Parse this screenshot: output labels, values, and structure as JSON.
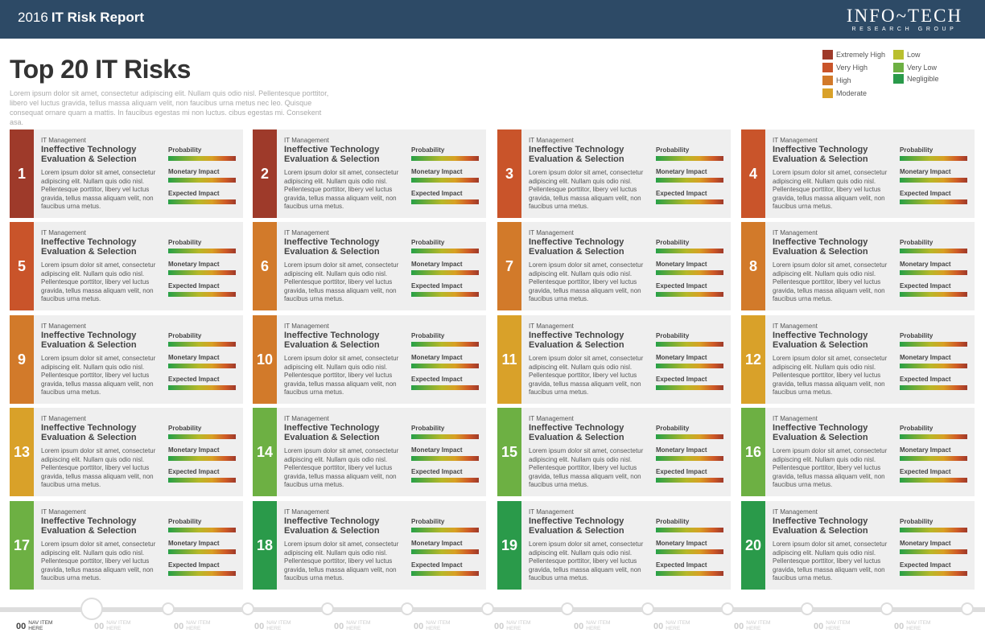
{
  "header": {
    "year": "2016",
    "title": "IT Risk Report",
    "logo_main": "INFO~TECH",
    "logo_sub": "RESEARCH GROUP"
  },
  "page": {
    "title": "Top 20 IT Risks",
    "intro": "Lorem ipsum dolor sit amet, consectetur adipiscing elit. Nullam quis odio nisl. Pellentesque porttitor, libero vel luctus gravida, tellus massa aliquam velit, non faucibus urna metus nec leo. Quisque consequat ornare quam a mattis. In faucibus egestas mi non luctus. cibus egestas mi. Consekent asa."
  },
  "legend": [
    {
      "label": "Extremely High",
      "color": "#9e3a2a"
    },
    {
      "label": "Very High",
      "color": "#c9542a"
    },
    {
      "label": "High",
      "color": "#d27a2a"
    },
    {
      "label": "Moderate",
      "color": "#d9a129"
    },
    {
      "label": "Low",
      "color": "#b9bf2e"
    },
    {
      "label": "Very Low",
      "color": "#6db043"
    },
    {
      "label": "Negligible",
      "color": "#2a9a4a"
    }
  ],
  "meter_labels": [
    "Probability",
    "Monetary Impact",
    "Expected Impact"
  ],
  "risks": [
    {
      "num": "1",
      "category": "IT Management",
      "title": "Ineffective Technology Evaluation & Selection",
      "desc": "Lorem ipsum dolor sit amet, consectetur adipiscing elit. Nullam quis odio nisl. Pellentesque porttitor, libery vel luctus gravida, tellus massa aliquam velit, non faucibus urna metus.",
      "color": "#9e3a2a"
    },
    {
      "num": "2",
      "category": "IT Management",
      "title": "Ineffective Technology Evaluation & Selection",
      "desc": "Lorem ipsum dolor sit amet, consectetur adipiscing elit. Nullam quis odio nisl. Pellentesque porttitor, libery vel luctus gravida, tellus massa aliquam velit, non faucibus urna metus.",
      "color": "#9e3a2a"
    },
    {
      "num": "3",
      "category": "IT Management",
      "title": "Ineffective Technology Evaluation & Selection",
      "desc": "Lorem ipsum dolor sit amet, consectetur adipiscing elit. Nullam quis odio nisl. Pellentesque porttitor, libery vel luctus gravida, tellus massa aliquam velit, non faucibus urna metus.",
      "color": "#c9542a"
    },
    {
      "num": "4",
      "category": "IT Management",
      "title": "Ineffective Technology Evaluation & Selection",
      "desc": "Lorem ipsum dolor sit amet, consectetur adipiscing elit. Nullam quis odio nisl. Pellentesque porttitor, libery vel luctus gravida, tellus massa aliquam velit, non faucibus urna metus.",
      "color": "#c9542a"
    },
    {
      "num": "5",
      "category": "IT Management",
      "title": "Ineffective Technology Evaluation & Selection",
      "desc": "Lorem ipsum dolor sit amet, consectetur adipiscing elit. Nullam quis odio nisl. Pellentesque porttitor, libery vel luctus gravida, tellus massa aliquam velit, non faucibus urna metus.",
      "color": "#c9542a"
    },
    {
      "num": "6",
      "category": "IT Management",
      "title": "Ineffective Technology Evaluation & Selection",
      "desc": "Lorem ipsum dolor sit amet, consectetur adipiscing elit. Nullam quis odio nisl. Pellentesque porttitor, libery vel luctus gravida, tellus massa aliquam velit, non faucibus urna metus.",
      "color": "#d27a2a"
    },
    {
      "num": "7",
      "category": "IT Management",
      "title": "Ineffective Technology Evaluation & Selection",
      "desc": "Lorem ipsum dolor sit amet, consectetur adipiscing elit. Nullam quis odio nisl. Pellentesque porttitor, libery vel luctus gravida, tellus massa aliquam velit, non faucibus urna metus.",
      "color": "#d27a2a"
    },
    {
      "num": "8",
      "category": "IT Management",
      "title": "Ineffective Technology Evaluation & Selection",
      "desc": "Lorem ipsum dolor sit amet, consectetur adipiscing elit. Nullam quis odio nisl. Pellentesque porttitor, libery vel luctus gravida, tellus massa aliquam velit, non faucibus urna metus.",
      "color": "#d27a2a"
    },
    {
      "num": "9",
      "category": "IT Management",
      "title": "Ineffective Technology Evaluation & Selection",
      "desc": "Lorem ipsum dolor sit amet, consectetur adipiscing elit. Nullam quis odio nisl. Pellentesque porttitor, libery vel luctus gravida, tellus massa aliquam velit, non faucibus urna metus.",
      "color": "#d27a2a"
    },
    {
      "num": "10",
      "category": "IT Management",
      "title": "Ineffective Technology Evaluation & Selection",
      "desc": "Lorem ipsum dolor sit amet, consectetur adipiscing elit. Nullam quis odio nisl. Pellentesque porttitor, libery vel luctus gravida, tellus massa aliquam velit, non faucibus urna metus.",
      "color": "#d27a2a"
    },
    {
      "num": "11",
      "category": "IT Management",
      "title": "Ineffective Technology Evaluation & Selection",
      "desc": "Lorem ipsum dolor sit amet, consectetur adipiscing elit. Nullam quis odio nisl. Pellentesque porttitor, libery vel luctus gravida, tellus massa aliquam velit, non faucibus urna metus.",
      "color": "#d9a129"
    },
    {
      "num": "12",
      "category": "IT Management",
      "title": "Ineffective Technology Evaluation & Selection",
      "desc": "Lorem ipsum dolor sit amet, consectetur adipiscing elit. Nullam quis odio nisl. Pellentesque porttitor, libery vel luctus gravida, tellus massa aliquam velit, non faucibus urna metus.",
      "color": "#d9a129"
    },
    {
      "num": "13",
      "category": "IT Management",
      "title": "Ineffective Technology Evaluation & Selection",
      "desc": "Lorem ipsum dolor sit amet, consectetur adipiscing elit. Nullam quis odio nisl. Pellentesque porttitor, libery vel luctus gravida, tellus massa aliquam velit, non faucibus urna metus.",
      "color": "#d9a129"
    },
    {
      "num": "14",
      "category": "IT Management",
      "title": "Ineffective Technology Evaluation & Selection",
      "desc": "Lorem ipsum dolor sit amet, consectetur adipiscing elit. Nullam quis odio nisl. Pellentesque porttitor, libery vel luctus gravida, tellus massa aliquam velit, non faucibus urna metus.",
      "color": "#6db043"
    },
    {
      "num": "15",
      "category": "IT Management",
      "title": "Ineffective Technology Evaluation & Selection",
      "desc": "Lorem ipsum dolor sit amet, consectetur adipiscing elit. Nullam quis odio nisl. Pellentesque porttitor, libery vel luctus gravida, tellus massa aliquam velit, non faucibus urna metus.",
      "color": "#6db043"
    },
    {
      "num": "16",
      "category": "IT Management",
      "title": "Ineffective Technology Evaluation & Selection",
      "desc": "Lorem ipsum dolor sit amet, consectetur adipiscing elit. Nullam quis odio nisl. Pellentesque porttitor, libery vel luctus gravida, tellus massa aliquam velit, non faucibus urna metus.",
      "color": "#6db043"
    },
    {
      "num": "17",
      "category": "IT Management",
      "title": "Ineffective Technology Evaluation & Selection",
      "desc": "Lorem ipsum dolor sit amet, consectetur adipiscing elit. Nullam quis odio nisl. Pellentesque porttitor, libery vel luctus gravida, tellus massa aliquam velit, non faucibus urna metus.",
      "color": "#6db043"
    },
    {
      "num": "18",
      "category": "IT Management",
      "title": "Ineffective Technology Evaluation & Selection",
      "desc": "Lorem ipsum dolor sit amet, consectetur adipiscing elit. Nullam quis odio nisl. Pellentesque porttitor, libery vel luctus gravida, tellus massa aliquam velit, non faucibus urna metus.",
      "color": "#2a9a4a"
    },
    {
      "num": "19",
      "category": "IT Management",
      "title": "Ineffective Technology Evaluation & Selection",
      "desc": "Lorem ipsum dolor sit amet, consectetur adipiscing elit. Nullam quis odio nisl. Pellentesque porttitor, libery vel luctus gravida, tellus massa aliquam velit, non faucibus urna metus.",
      "color": "#2a9a4a"
    },
    {
      "num": "20",
      "category": "IT Management",
      "title": "Ineffective Technology Evaluation & Selection",
      "desc": "Lorem ipsum dolor sit amet, consectetur adipiscing elit. Nullam quis odio nisl. Pellentesque porttitor, libery vel luctus gravida, tellus massa aliquam velit, non faucibus urna metus.",
      "color": "#2a9a4a"
    }
  ],
  "nav": {
    "active_index": 0,
    "items": [
      {
        "num": "00",
        "line1": "NAV ITEM",
        "line2": "HERE"
      },
      {
        "num": "00",
        "line1": "NAV ITEM",
        "line2": "HERE"
      },
      {
        "num": "00",
        "line1": "NAV ITEM",
        "line2": "HERE"
      },
      {
        "num": "00",
        "line1": "NAV ITEM",
        "line2": "HERE"
      },
      {
        "num": "00",
        "line1": "NAV ITEM",
        "line2": "HERE"
      },
      {
        "num": "00",
        "line1": "NAV ITEM",
        "line2": "HERE"
      },
      {
        "num": "00",
        "line1": "NAV ITEM",
        "line2": "HERE"
      },
      {
        "num": "00",
        "line1": "NAV ITEM",
        "line2": "HERE"
      },
      {
        "num": "00",
        "line1": "NAV ITEM",
        "line2": "HERE"
      },
      {
        "num": "00",
        "line1": "NAV ITEM",
        "line2": "HERE"
      },
      {
        "num": "00",
        "line1": "NAV ITEM",
        "line2": "HERE"
      },
      {
        "num": "00",
        "line1": "NAV ITEM",
        "line2": "HERE"
      },
      {
        "num": "00",
        "line1": "NAV ITEM",
        "line2": "HERE"
      }
    ]
  }
}
